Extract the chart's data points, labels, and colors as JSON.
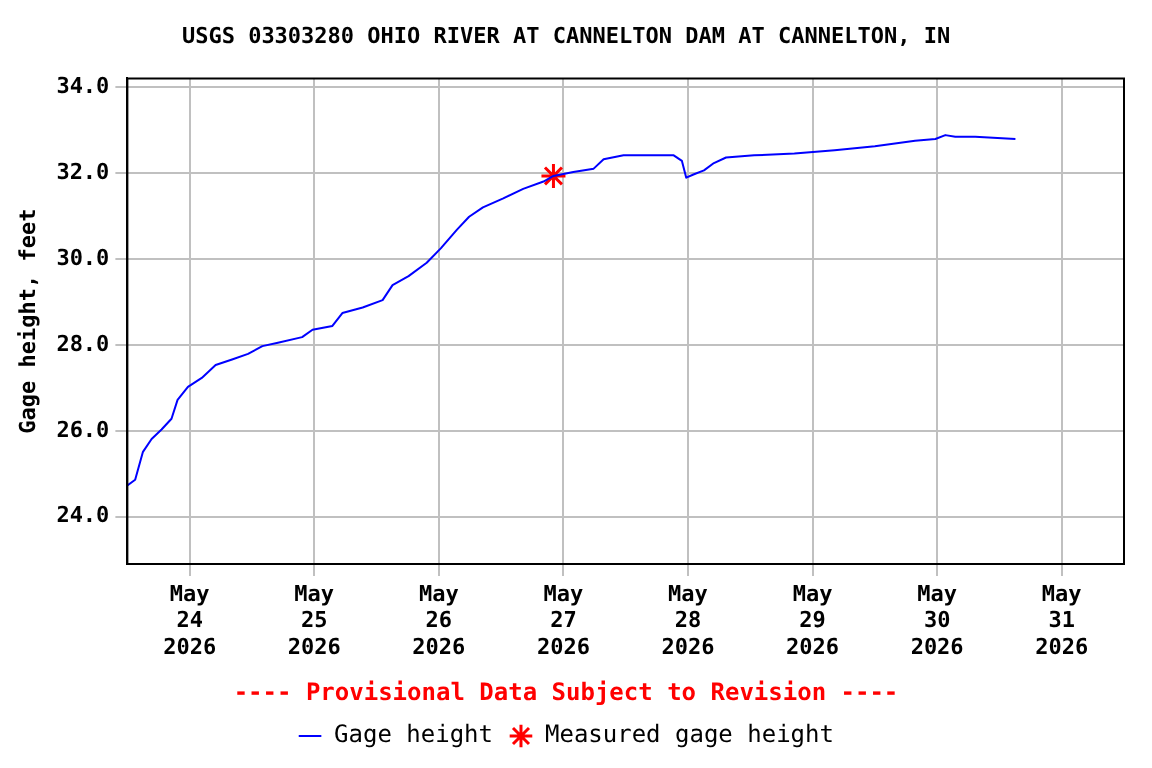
{
  "chart_data": {
    "type": "line",
    "title": "USGS 03303280 OHIO RIVER AT CANNELTON DAM AT CANNELTON, IN",
    "ylabel": "Gage height, feet",
    "annotations": [
      "---- Provisional Data Subject to Revision ----"
    ],
    "xlim": [
      "2026-05-23T12:00",
      "2026-05-31T12:00"
    ],
    "xticks": [
      {
        "value": "2026-05-24",
        "label": "May 24 2026"
      },
      {
        "value": "2026-05-25",
        "label": "May 25 2026"
      },
      {
        "value": "2026-05-26",
        "label": "May 26 2026"
      },
      {
        "value": "2026-05-27",
        "label": "May 27 2026"
      },
      {
        "value": "2026-05-28",
        "label": "May 28 2026"
      },
      {
        "value": "2026-05-29",
        "label": "May 29 2026"
      },
      {
        "value": "2026-05-30",
        "label": "May 30 2026"
      },
      {
        "value": "2026-05-31",
        "label": "May 31 2026"
      }
    ],
    "ylim": [
      22.9,
      34.2
    ],
    "yticks": [
      {
        "value": 24,
        "label": "24.0"
      },
      {
        "value": 26,
        "label": "26.0"
      },
      {
        "value": 28,
        "label": "28.0"
      },
      {
        "value": 30,
        "label": "30.0"
      },
      {
        "value": 32,
        "label": "32.0"
      },
      {
        "value": 34,
        "label": "34.0"
      }
    ],
    "grid": true,
    "legend": "bottom",
    "series": [
      {
        "name": "Gage height",
        "type": "line",
        "color": "#0000ff",
        "marker": "none",
        "x": [
          "2026-05-23T12:00",
          "2026-05-23T13:30",
          "2026-05-23T15:00",
          "2026-05-23T16:40",
          "2026-05-23T18:35",
          "2026-05-23T20:30",
          "2026-05-23T21:40",
          "2026-05-23T23:40",
          "2026-05-24T02:20",
          "2026-05-24T05:00",
          "2026-05-24T08:10",
          "2026-05-24T11:15",
          "2026-05-24T14:00",
          "2026-05-24T17:00",
          "2026-05-24T21:40",
          "2026-05-24T23:40",
          "2026-05-25T03:30",
          "2026-05-25T05:25",
          "2026-05-25T09:20",
          "2026-05-25T13:10",
          "2026-05-25T15:05",
          "2026-05-25T18:10",
          "2026-05-25T21:40",
          "2026-05-26T00:25",
          "2026-05-26T03:30",
          "2026-05-26T05:50",
          "2026-05-26T08:30",
          "2026-05-26T12:25",
          "2026-05-26T16:15",
          "2026-05-26T20:10",
          "2026-05-26T22:05",
          "2026-05-27T01:55",
          "2026-05-27T05:50",
          "2026-05-27T07:45",
          "2026-05-27T11:35",
          "2026-05-27T17:25",
          "2026-05-27T21:15",
          "2026-05-27T22:50",
          "2026-05-27T23:40",
          "2026-05-28T01:10",
          "2026-05-28T03:05",
          "2026-05-28T05:00",
          "2026-05-28T07:20",
          "2026-05-28T12:45",
          "2026-05-28T20:30",
          "2026-05-29T04:15",
          "2026-05-29T12:00",
          "2026-05-29T19:45",
          "2026-05-29T23:40",
          "2026-05-30T01:35",
          "2026-05-30T03:30",
          "2026-05-30T07:20",
          "2026-05-30T15:05"
        ],
        "values": [
          24.73,
          24.86,
          25.51,
          25.81,
          26.03,
          26.28,
          26.72,
          27.02,
          27.23,
          27.53,
          27.66,
          27.79,
          27.97,
          28.05,
          28.18,
          28.35,
          28.44,
          28.74,
          28.87,
          29.04,
          29.39,
          29.6,
          29.91,
          30.25,
          30.68,
          30.98,
          31.2,
          31.41,
          31.63,
          31.8,
          31.93,
          32.02,
          32.1,
          32.32,
          32.41,
          32.41,
          32.41,
          32.28,
          31.89,
          31.97,
          32.06,
          32.23,
          32.36,
          32.41,
          32.45,
          32.53,
          32.62,
          32.75,
          32.79,
          32.88,
          32.84,
          32.84,
          32.79
        ]
      },
      {
        "name": "Measured gage height",
        "type": "scatter",
        "color": "#ff0000",
        "marker": "cross",
        "x": [
          "2026-05-26T22:05"
        ],
        "values": [
          31.93
        ]
      }
    ]
  }
}
